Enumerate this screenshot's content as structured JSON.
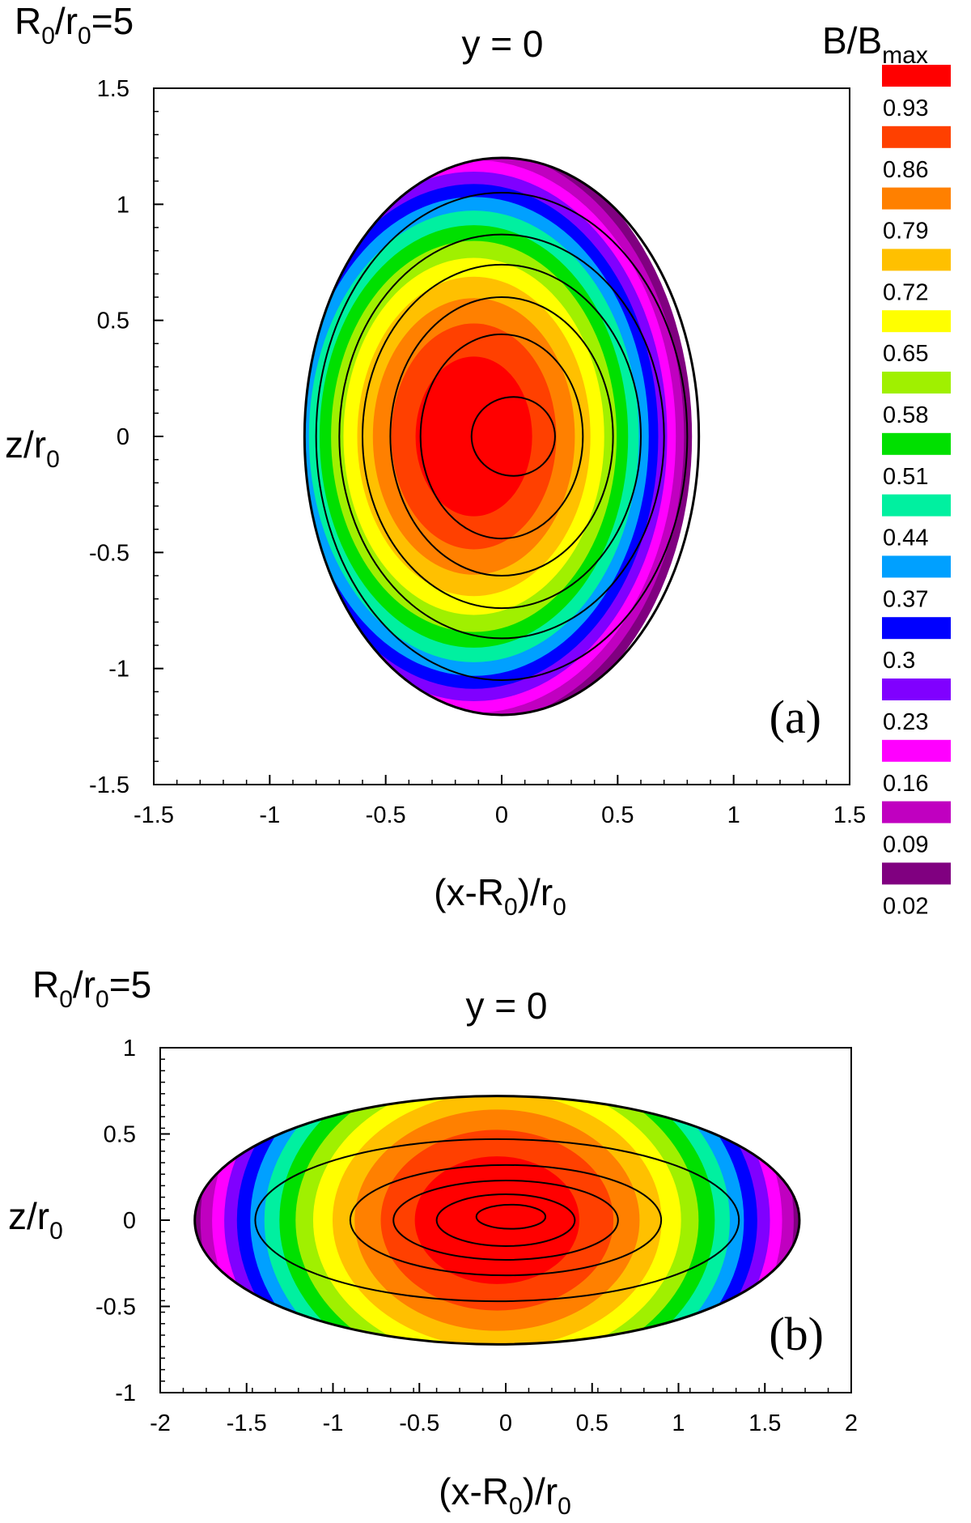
{
  "colorbar": {
    "title": "B/B",
    "title_sub": "max",
    "levels": [
      {
        "label": "0.93",
        "color": "#ff0000"
      },
      {
        "label": "0.86",
        "color": "#ff4000"
      },
      {
        "label": "0.79",
        "color": "#ff8000"
      },
      {
        "label": "0.72",
        "color": "#ffc000"
      },
      {
        "label": "0.65",
        "color": "#ffff00"
      },
      {
        "label": "0.58",
        "color": "#a0f000"
      },
      {
        "label": "0.51",
        "color": "#00e000"
      },
      {
        "label": "0.44",
        "color": "#00f0a0"
      },
      {
        "label": "0.37",
        "color": "#00a0ff"
      },
      {
        "label": "0.3",
        "color": "#0000ff"
      },
      {
        "label": "0.23",
        "color": "#8000ff"
      },
      {
        "label": "0.16",
        "color": "#ff00ff"
      },
      {
        "label": "0.09",
        "color": "#c000c0"
      },
      {
        "label": "0.02",
        "color": "#800080"
      }
    ]
  },
  "chart_data": [
    {
      "type": "heatmap",
      "panel": "(a)",
      "corner_label": {
        "main": "R",
        "sub1": "0",
        "mid": "/r",
        "sub2": "0",
        "tail": "=5"
      },
      "title": "y = 0",
      "xlabel": {
        "main": "(x-R",
        "sub": "0",
        "tail": ")/r",
        "sub2": "0"
      },
      "ylabel": {
        "main": "z/r",
        "sub": "0"
      },
      "xlim": [
        -1.5,
        1.5
      ],
      "ylim": [
        -1.5,
        1.5
      ],
      "xticks": [
        "-1.5",
        "-1",
        "-0.5",
        "0",
        "0.5",
        "1",
        "1.5"
      ],
      "yticks": [
        "1.5",
        "1",
        "0.5",
        "0",
        "-0.5",
        "-1",
        "-1.5"
      ],
      "boundary": {
        "center": [
          0.0,
          0.0
        ],
        "semi_x": 0.85,
        "semi_z": 1.2
      },
      "field_center": [
        -0.12,
        0.0
      ],
      "field_scale": [
        0.95,
        1.3
      ],
      "contours": [
        {
          "center": [
            0.05,
            0.0
          ],
          "semi_x": 0.18,
          "semi_z": 0.17
        },
        {
          "center": [
            0.0,
            0.0
          ],
          "semi_x": 0.35,
          "semi_z": 0.44
        },
        {
          "center": [
            0.0,
            0.0
          ],
          "semi_x": 0.48,
          "semi_z": 0.6
        },
        {
          "center": [
            0.0,
            0.0
          ],
          "semi_x": 0.6,
          "semi_z": 0.74
        },
        {
          "center": [
            0.0,
            0.0
          ],
          "semi_x": 0.7,
          "semi_z": 0.87
        },
        {
          "center": [
            0.0,
            0.0
          ],
          "semi_x": 0.8,
          "semi_z": 1.05
        }
      ]
    },
    {
      "type": "heatmap",
      "panel": "(b)",
      "corner_label": {
        "main": "R",
        "sub1": "0",
        "mid": "/r",
        "sub2": "0",
        "tail": "=5"
      },
      "title": "y = 0",
      "xlabel": {
        "main": "(x-R",
        "sub": "0",
        "tail": ")/r",
        "sub2": "0"
      },
      "ylabel": {
        "main": "z/r",
        "sub": "0"
      },
      "xlim": [
        -2,
        2
      ],
      "ylim": [
        -1,
        1
      ],
      "xticks": [
        "-2",
        "-1.5",
        "-1",
        "-0.5",
        "0",
        "0.5",
        "1",
        "1.5",
        "2"
      ],
      "yticks": [
        "1",
        "0.5",
        "0",
        "-0.5",
        "-1"
      ],
      "boundary": {
        "center": [
          -0.05,
          0.0
        ],
        "semi_x": 1.75,
        "semi_z": 0.72
      },
      "field_center": [
        -0.05,
        0.0
      ],
      "field_scale": [
        1.8,
        1.4
      ],
      "contours": [
        {
          "center": [
            0.03,
            0.02
          ],
          "semi_x": 0.2,
          "semi_z": 0.07
        },
        {
          "center": [
            0.0,
            0.0
          ],
          "semi_x": 0.4,
          "semi_z": 0.15
        },
        {
          "center": [
            0.0,
            0.0
          ],
          "semi_x": 0.65,
          "semi_z": 0.23
        },
        {
          "center": [
            0.0,
            0.0
          ],
          "semi_x": 0.9,
          "semi_z": 0.32
        },
        {
          "center": [
            -0.05,
            0.0
          ],
          "semi_x": 1.4,
          "semi_z": 0.47
        }
      ]
    }
  ]
}
